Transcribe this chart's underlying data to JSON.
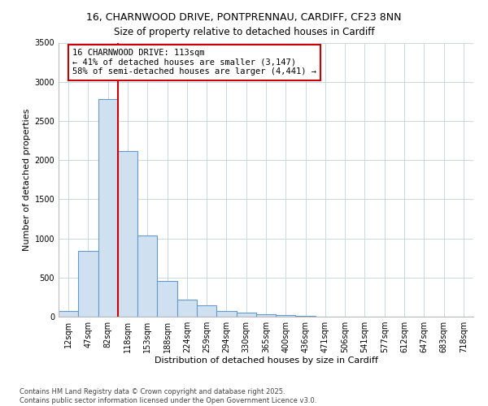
{
  "title_line1": "16, CHARNWOOD DRIVE, PONTPRENNAU, CARDIFF, CF23 8NN",
  "title_line2": "Size of property relative to detached houses in Cardiff",
  "xlabel": "Distribution of detached houses by size in Cardiff",
  "ylabel": "Number of detached properties",
  "categories": [
    "12sqm",
    "47sqm",
    "82sqm",
    "118sqm",
    "153sqm",
    "188sqm",
    "224sqm",
    "259sqm",
    "294sqm",
    "330sqm",
    "365sqm",
    "400sqm",
    "436sqm",
    "471sqm",
    "506sqm",
    "541sqm",
    "577sqm",
    "612sqm",
    "647sqm",
    "683sqm",
    "718sqm"
  ],
  "values": [
    75,
    840,
    2780,
    2120,
    1040,
    460,
    215,
    145,
    75,
    50,
    30,
    18,
    8,
    5,
    3,
    2,
    1,
    1,
    0,
    0,
    0
  ],
  "bar_color": "#cfe0f0",
  "bar_edge_color": "#6699cc",
  "vline_color": "#cc0000",
  "vline_x": 2.5,
  "annotation_text": "16 CHARNWOOD DRIVE: 113sqm\n← 41% of detached houses are smaller (3,147)\n58% of semi-detached houses are larger (4,441) →",
  "annotation_box_edge": "#cc0000",
  "ylim": [
    0,
    3500
  ],
  "yticks": [
    0,
    500,
    1000,
    1500,
    2000,
    2500,
    3000,
    3500
  ],
  "footnote": "Contains HM Land Registry data © Crown copyright and database right 2025.\nContains public sector information licensed under the Open Government Licence v3.0.",
  "bg_color": "#ffffff",
  "plot_bg_color": "#ffffff",
  "grid_color": "#c8d8e8",
  "title_fontsize": 9,
  "subtitle_fontsize": 8.5,
  "axis_label_fontsize": 8,
  "tick_fontsize": 7,
  "annotation_fontsize": 7.5,
  "footnote_fontsize": 6
}
